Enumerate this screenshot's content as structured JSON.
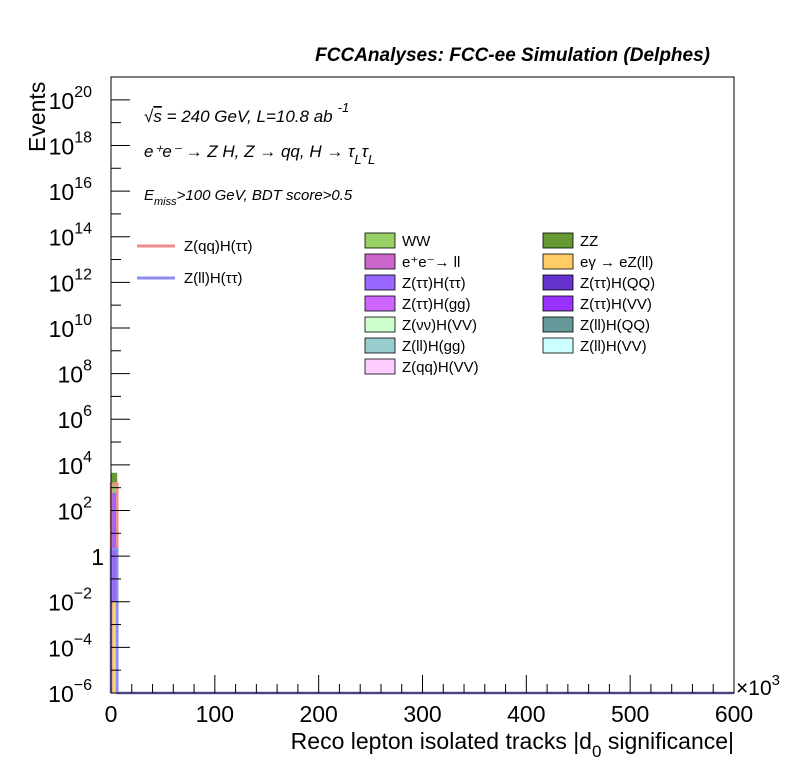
{
  "chart_data": {
    "type": "bar",
    "title": "FCCAnalyses: FCC-ee Simulation (Delphes)",
    "xlabel_main": "Reco lepton isolated tracks |d",
    "xlabel_sub": "0",
    "xlabel_tail": " significance|",
    "ylabel": "Events",
    "x_multiplier_base": "×10",
    "x_multiplier_exp": "3",
    "xlim": [
      0,
      600
    ],
    "ylim_log10": [
      -6,
      21
    ],
    "y_log_scale": true,
    "x_ticks": [
      {
        "v": 0,
        "label": "0"
      },
      {
        "v": 100,
        "label": "100"
      },
      {
        "v": 200,
        "label": "200"
      },
      {
        "v": 300,
        "label": "300"
      },
      {
        "v": 400,
        "label": "400"
      },
      {
        "v": 500,
        "label": "500"
      },
      {
        "v": 600,
        "label": "600"
      }
    ],
    "y_ticks": [
      {
        "e": 20,
        "base": "10",
        "exp": "20"
      },
      {
        "e": 18,
        "base": "10",
        "exp": "18"
      },
      {
        "e": 16,
        "base": "10",
        "exp": "16"
      },
      {
        "e": 14,
        "base": "10",
        "exp": "14"
      },
      {
        "e": 12,
        "base": "10",
        "exp": "12"
      },
      {
        "e": 10,
        "base": "10",
        "exp": "10"
      },
      {
        "e": 8,
        "base": "10",
        "exp": "8"
      },
      {
        "e": 6,
        "base": "10",
        "exp": "6"
      },
      {
        "e": 4,
        "base": "10",
        "exp": "4"
      },
      {
        "e": 2,
        "base": "10",
        "exp": "2"
      },
      {
        "e": 0,
        "base": "1",
        "exp": ""
      },
      {
        "e": -2,
        "base": "10",
        "exp": "−2"
      },
      {
        "e": -4,
        "base": "10",
        "exp": "−4"
      },
      {
        "e": -6,
        "base": "10",
        "exp": "−6"
      }
    ],
    "annotations": {
      "energy_sqrt": "√",
      "energy_s": "s",
      "energy_rest": " = 240 GeV, L=10.8 ab",
      "energy_exp": "-1",
      "process": "e⁺e⁻ → Z H, Z → qq, H → τ",
      "process_sub1": "L",
      "process_tau2": "τ",
      "process_sub2": "L",
      "cut_e": "E",
      "cut_sub": "miss",
      "cut_rest": ">100 GeV, BDT score>0.5"
    },
    "signals": [
      {
        "name": "Z(qq)H(ττ)",
        "color": "#f08c8c",
        "bins": [
          {
            "x0": 0,
            "x1": 6,
            "value": 1500
          },
          {
            "x0": 6,
            "x1": 600,
            "value": 1e-06
          }
        ]
      },
      {
        "name": "Z(ll)H(ττ)",
        "color": "#8c8cf5",
        "bins": [
          {
            "x0": 0,
            "x1": 6,
            "value": 2
          },
          {
            "x0": 6,
            "x1": 600,
            "value": 1e-06
          }
        ]
      }
    ],
    "backgrounds_legend": [
      {
        "name": "WW",
        "color": "#99d066"
      },
      {
        "name": "ZZ",
        "color": "#669933"
      },
      {
        "name": "e⁺e⁻→ ll",
        "color": "#cc66cc"
      },
      {
        "name": "eγ → eZ(ll)",
        "color": "#ffcc66"
      },
      {
        "name": "Z(ττ)H(ττ)",
        "color": "#9966ff"
      },
      {
        "name": "Z(ττ)H(QQ)",
        "color": "#6633cc"
      },
      {
        "name": "Z(ττ)H(gg)",
        "color": "#cc66ff"
      },
      {
        "name": "Z(ττ)H(VV)",
        "color": "#9933ff"
      },
      {
        "name": "Z(νν)H(VV)",
        "color": "#ccffcc"
      },
      {
        "name": "Z(ll)H(QQ)",
        "color": "#669999"
      },
      {
        "name": "Z(ll)H(gg)",
        "color": "#99cccc"
      },
      {
        "name": "Z(ll)H(VV)",
        "color": "#ccffff"
      },
      {
        "name": "Z(qq)H(VV)",
        "color": "#ffccff"
      }
    ],
    "stack": [
      {
        "name": "eγ → eZ(ll)",
        "color": "#ffcc66",
        "value": 0.01
      },
      {
        "name": "Z(ττ)H(ττ)",
        "color": "#9966ff",
        "value": 600
      },
      {
        "name": "WW",
        "color": "#99d066",
        "value": 900
      },
      {
        "name": "ZZ",
        "color": "#669933",
        "value": 3000
      }
    ],
    "stack_bin": [
      0,
      6
    ]
  }
}
